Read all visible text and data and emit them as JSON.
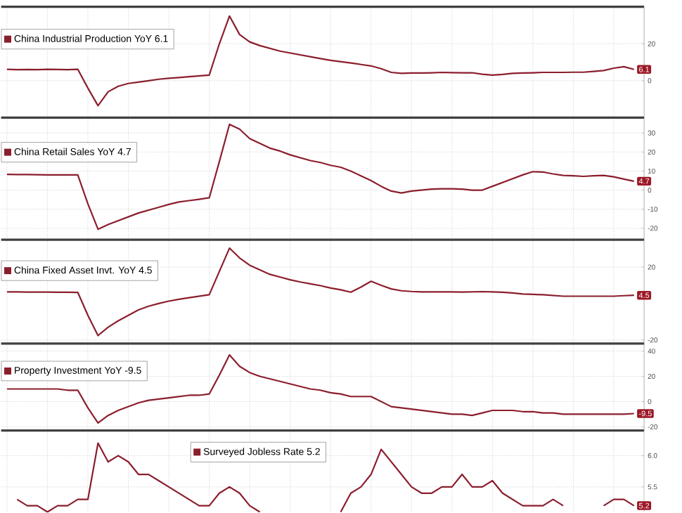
{
  "chart_data": [
    {
      "type": "line",
      "categories": [
        null,
        null,
        null,
        null,
        null,
        null,
        null,
        null,
        null,
        null,
        null,
        null,
        null,
        null,
        null,
        null,
        null,
        null,
        null,
        null,
        null,
        null,
        null,
        null,
        null,
        null,
        null,
        null,
        null,
        null,
        null,
        null,
        null,
        null,
        null,
        null,
        null,
        null,
        null,
        null,
        null,
        null,
        null,
        null,
        null,
        null,
        null,
        null,
        null,
        null,
        null,
        null,
        null,
        null,
        null,
        null,
        null,
        null,
        null,
        null,
        null,
        null,
        null
      ],
      "series": [
        {
          "name": "China Industrial Production YoY 6.1",
          "color": "#8b1e2d",
          "values": [
            6.2,
            6.0,
            6.1,
            6.0,
            6.2,
            6.1,
            6.0,
            6.2,
            -4,
            -13.5,
            -6,
            -3,
            -1.5,
            -0.8,
            0,
            0.8,
            1.3,
            1.7,
            2.2,
            2.6,
            3,
            20,
            35,
            25,
            21,
            19,
            17.5,
            16,
            15,
            14,
            13,
            12,
            11,
            10.3,
            9.6,
            8.8,
            8,
            6.5,
            4.5,
            4,
            4.2,
            4.2,
            4.3,
            4.5,
            4.4,
            4.3,
            4.3,
            3.5,
            3,
            3.4,
            4,
            4.2,
            4.3,
            4.5,
            4.5,
            4.5,
            4.6,
            4.6,
            5,
            5.5,
            6.8,
            7.6,
            6.1
          ],
          "value_labels": [
            null,
            null,
            null,
            null,
            null,
            null,
            null,
            null,
            null,
            null,
            null,
            null,
            null,
            null,
            null,
            null,
            null,
            null,
            null,
            null,
            null,
            null,
            null,
            null,
            null,
            null,
            null,
            null,
            null,
            null,
            null,
            null,
            null,
            null,
            null,
            null,
            null,
            null,
            null,
            null,
            null,
            null,
            null,
            null,
            null,
            null,
            null,
            null,
            null,
            null,
            null,
            null,
            null,
            null,
            null,
            null,
            null,
            null,
            null,
            null,
            null,
            null,
            "6.1"
          ]
        }
      ],
      "ylim": [
        -20,
        40
      ],
      "yticks": [
        0,
        20
      ],
      "grid": true,
      "legend": "top left",
      "tick_labels": "y"
    },
    {
      "type": "line",
      "categories": [
        null,
        null,
        null,
        null,
        null,
        null,
        null,
        null,
        null,
        null,
        null,
        null,
        null,
        null,
        null,
        null,
        null,
        null,
        null,
        null,
        null,
        null,
        null,
        null,
        null,
        null,
        null,
        null,
        null,
        null,
        null,
        null,
        null,
        null,
        null,
        null,
        null,
        null,
        null,
        null,
        null,
        null,
        null,
        null,
        null,
        null,
        null,
        null,
        null,
        null,
        null,
        null,
        null,
        null,
        null,
        null,
        null,
        null,
        null,
        null,
        null,
        null,
        null
      ],
      "series": [
        {
          "name": "China Retail Sales YoY 4.7",
          "color": "#8b1e2d",
          "values": [
            8.3,
            8.2,
            8.2,
            8.1,
            8.0,
            8.0,
            8.0,
            8.0,
            -7.2,
            -20.5,
            -18,
            -16,
            -14,
            -12,
            -10.5,
            -9,
            -7.5,
            -6.2,
            -5.5,
            -4.8,
            -4,
            15,
            34.5,
            32,
            27,
            24.5,
            22,
            20.5,
            18.5,
            17,
            15.5,
            14.5,
            13,
            12,
            10,
            7.5,
            5,
            2,
            -0.5,
            -1.5,
            -0.5,
            0,
            0.5,
            0.7,
            0.7,
            0.5,
            0,
            0,
            2,
            4,
            6,
            8,
            9.7,
            9.5,
            8.5,
            7.7,
            7.5,
            7.2,
            7.5,
            7.7,
            7,
            5.8,
            4.7
          ],
          "value_labels": [
            null,
            null,
            null,
            null,
            null,
            null,
            null,
            null,
            null,
            null,
            null,
            null,
            null,
            null,
            null,
            null,
            null,
            null,
            null,
            null,
            null,
            null,
            null,
            null,
            null,
            null,
            null,
            null,
            null,
            null,
            null,
            null,
            null,
            null,
            null,
            null,
            null,
            null,
            null,
            null,
            null,
            null,
            null,
            null,
            null,
            null,
            null,
            null,
            null,
            null,
            null,
            null,
            null,
            null,
            null,
            null,
            null,
            null,
            null,
            null,
            null,
            null,
            "4.7"
          ]
        }
      ],
      "ylim": [
        -26,
        38
      ],
      "yticks": [
        -20,
        -10,
        0,
        10,
        20,
        30
      ],
      "grid": true,
      "legend": "top left",
      "tick_labels": "y"
    },
    {
      "type": "line",
      "categories": [
        null,
        null,
        null,
        null,
        null,
        null,
        null,
        null,
        null,
        null,
        null,
        null,
        null,
        null,
        null,
        null,
        null,
        null,
        null,
        null,
        null,
        null,
        null,
        null,
        null,
        null,
        null,
        null,
        null,
        null,
        null,
        null,
        null,
        null,
        null,
        null,
        null,
        null,
        null,
        null,
        null,
        null,
        null,
        null,
        null,
        null,
        null,
        null,
        null,
        null,
        null,
        null,
        null,
        null,
        null,
        null,
        null,
        null,
        null,
        null,
        null,
        null,
        null
      ],
      "series": [
        {
          "name": "China Fixed Asset Invt. YoY 4.5",
          "color": "#8b1e2d",
          "values": [
            6.4,
            6.4,
            6.3,
            6.3,
            6.3,
            6.2,
            6.2,
            6.1,
            -6.5,
            -17.6,
            -13,
            -9.5,
            -6.5,
            -3.5,
            -1.5,
            0,
            1.3,
            2.3,
            3.2,
            4,
            4.8,
            17.6,
            30.4,
            25,
            21,
            18.5,
            16,
            14.5,
            13,
            11.8,
            10.8,
            9.8,
            8.5,
            7.5,
            6.2,
            9,
            12.2,
            10,
            8,
            7,
            6.6,
            6.4,
            6.4,
            6.4,
            6.4,
            6.3,
            6.4,
            6.5,
            6.4,
            6.2,
            5.8,
            5.2,
            5,
            4.8,
            4.4,
            4,
            4,
            4,
            4,
            4,
            4,
            4.3,
            4.5
          ],
          "value_labels": [
            null,
            null,
            null,
            null,
            null,
            null,
            null,
            null,
            null,
            null,
            null,
            null,
            null,
            null,
            null,
            null,
            null,
            null,
            null,
            null,
            null,
            null,
            null,
            null,
            null,
            null,
            null,
            null,
            null,
            null,
            null,
            null,
            null,
            null,
            null,
            null,
            null,
            null,
            null,
            null,
            null,
            null,
            null,
            null,
            null,
            null,
            null,
            null,
            null,
            null,
            null,
            null,
            null,
            null,
            null,
            null,
            null,
            null,
            null,
            null,
            null,
            null,
            "4.5"
          ]
        }
      ],
      "ylim": [
        -22,
        35
      ],
      "yticks": [
        -20,
        20
      ],
      "grid": true,
      "legend": "top left",
      "tick_labels": "y"
    },
    {
      "type": "line",
      "categories": [
        null,
        null,
        null,
        null,
        null,
        null,
        null,
        null,
        null,
        null,
        null,
        null,
        null,
        null,
        null,
        null,
        null,
        null,
        null,
        null,
        null,
        null,
        null,
        null,
        null,
        null,
        null,
        null,
        null,
        null,
        null,
        null,
        null,
        null,
        null,
        null,
        null,
        null,
        null,
        null,
        null,
        null,
        null,
        null,
        null,
        null,
        null,
        null,
        null,
        null,
        null,
        null,
        null,
        null,
        null,
        null,
        null,
        null,
        null,
        null,
        null,
        null,
        null
      ],
      "series": [
        {
          "name": "Property Investment YoY -9.5",
          "color": "#8b1e2d",
          "values": [
            10,
            10,
            10,
            10,
            10,
            10,
            9,
            9,
            -5,
            -17,
            -11,
            -7,
            -4,
            -1,
            1,
            2,
            3,
            4,
            5,
            5,
            6,
            21,
            37,
            28,
            23,
            20,
            18,
            16,
            14,
            12,
            10,
            9,
            7,
            6,
            4,
            4,
            4,
            0,
            -4,
            -5,
            -6,
            -7,
            -8,
            -9,
            -10,
            -10,
            -11,
            -9,
            -7,
            -7,
            -7,
            -8,
            -8,
            -9,
            -9,
            -10,
            -10,
            -10,
            -10,
            -10,
            -10,
            -10,
            -9.5
          ],
          "value_labels": [
            null,
            null,
            null,
            null,
            null,
            null,
            null,
            null,
            null,
            null,
            null,
            null,
            null,
            null,
            null,
            null,
            null,
            null,
            null,
            null,
            null,
            null,
            null,
            null,
            null,
            null,
            null,
            null,
            null,
            null,
            null,
            null,
            null,
            null,
            null,
            null,
            null,
            null,
            null,
            null,
            null,
            null,
            null,
            null,
            null,
            null,
            null,
            null,
            null,
            null,
            null,
            null,
            null,
            null,
            null,
            null,
            null,
            null,
            null,
            null,
            null,
            null,
            "-9.5"
          ]
        }
      ],
      "ylim": [
        -23,
        46
      ],
      "yticks": [
        -20,
        0,
        20,
        40
      ],
      "grid": true,
      "legend": "top left",
      "tick_labels": "y"
    },
    {
      "type": "line",
      "categories": [
        null,
        null,
        null,
        null,
        null,
        null,
        null,
        null,
        null,
        null,
        null,
        null,
        null,
        null,
        null,
        null,
        null,
        null,
        null,
        null,
        null,
        null,
        null,
        null,
        null,
        null,
        null,
        null,
        null,
        null,
        null,
        null,
        null,
        null,
        null,
        null,
        null,
        null,
        null,
        null,
        null,
        null,
        null,
        null,
        null,
        null,
        null,
        null,
        null,
        null,
        null,
        null,
        null,
        null,
        null,
        null,
        null,
        null,
        null,
        null,
        null,
        null,
        null
      ],
      "series": [
        {
          "name": "Surveyed Jobless Rate 5.2",
          "color": "#8b1e2d",
          "values": [
            null,
            5.3,
            5.2,
            5.2,
            5.1,
            5.2,
            5.2,
            5.3,
            5.3,
            6.2,
            5.9,
            6.0,
            5.9,
            5.7,
            5.7,
            5.6,
            5.5,
            5.4,
            5.3,
            5.2,
            5.2,
            5.4,
            5.5,
            5.4,
            5.2,
            5.1,
            null,
            null,
            null,
            null,
            null,
            null,
            null,
            5.1,
            5.4,
            5.5,
            5.7,
            6.1,
            5.9,
            5.7,
            5.5,
            5.4,
            5.4,
            5.5,
            5.5,
            5.7,
            5.5,
            5.5,
            5.6,
            5.4,
            5.3,
            5.2,
            5.2,
            5.2,
            5.3,
            5.2,
            null,
            null,
            null,
            5.2,
            5.3,
            5.3,
            5.2
          ],
          "value_labels": [
            null,
            null,
            null,
            null,
            null,
            null,
            null,
            null,
            null,
            null,
            null,
            null,
            null,
            null,
            null,
            null,
            null,
            null,
            null,
            null,
            null,
            null,
            null,
            null,
            null,
            null,
            null,
            null,
            null,
            null,
            null,
            null,
            null,
            null,
            null,
            null,
            null,
            null,
            null,
            null,
            null,
            null,
            null,
            null,
            null,
            null,
            null,
            null,
            null,
            null,
            null,
            null,
            null,
            null,
            null,
            null,
            null,
            null,
            null,
            null,
            null,
            null,
            "5.2"
          ]
        }
      ],
      "ylim": [
        5.1,
        6.4
      ],
      "yticks": [
        5.5,
        {
          "value": 6,
          "label": "6.0"
        }
      ],
      "grid": true,
      "legend": "top",
      "tick_labels": "y"
    }
  ]
}
